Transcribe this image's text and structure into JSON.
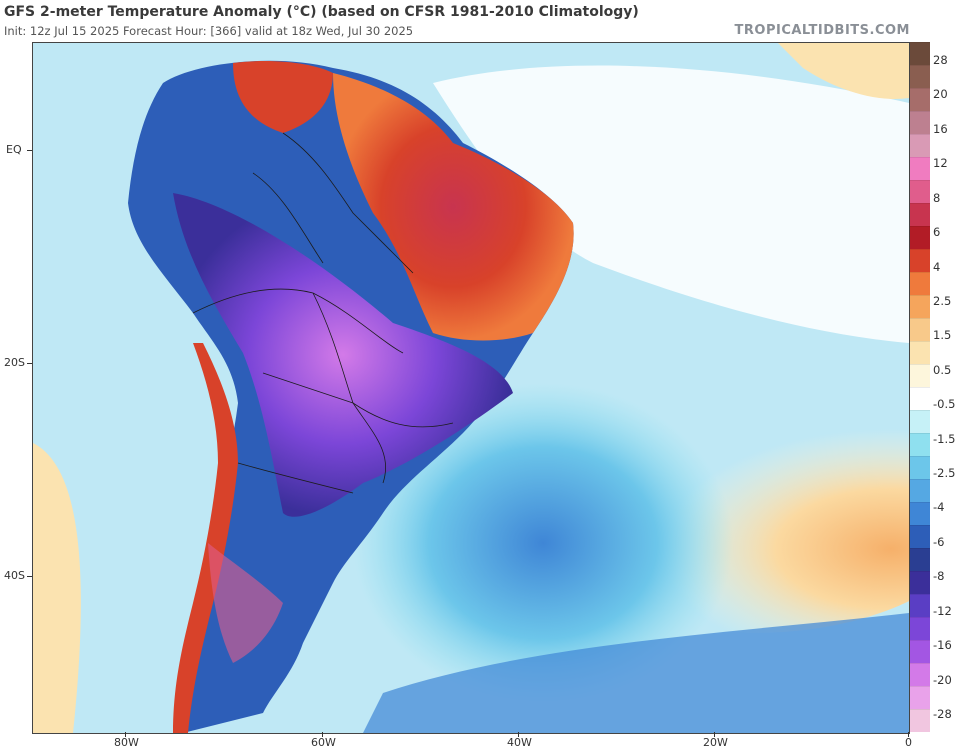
{
  "header": {
    "title": "GFS 2-meter Temperature Anomaly (°C) (based on CFSR 1981-2010 Climatology)",
    "subtitle": "Init: 12z Jul 15 2025   Forecast Hour: [366]   valid at 18z Wed, Jul 30 2025",
    "watermark": "TROPICALTIDBITS.COM"
  },
  "map": {
    "lat_labels": [
      "EQ",
      "20S",
      "40S"
    ],
    "lon_labels": [
      "80W",
      "60W",
      "40W",
      "20W",
      "0"
    ]
  },
  "colorbar": {
    "labels": [
      "28",
      "20",
      "16",
      "12",
      "8",
      "6",
      "4",
      "2.5",
      "1.5",
      "0.5",
      "-0.5",
      "-1.5",
      "-2.5",
      "-4",
      "-6",
      "-8",
      "-12",
      "-16",
      "-20",
      "-28"
    ],
    "colors": [
      "#6b4a3a",
      "#8a5e50",
      "#a66d6a",
      "#bd8090",
      "#d99ab5",
      "#f07cc0",
      "#e05d8c",
      "#c8344f",
      "#b21c26",
      "#d8422a",
      "#ef7a3c",
      "#f5a55c",
      "#f8c98a",
      "#fbe3b0",
      "#fdf6dc",
      "#ffffff",
      "#c6f1f7",
      "#8fe0ef",
      "#6cc6ea",
      "#55a8e3",
      "#3f86d6",
      "#2d5eb8",
      "#2a3e92",
      "#3b2f9a",
      "#5a3ec4",
      "#7c46d8",
      "#a356e3",
      "#d37ae8",
      "#e9a2ea",
      "#f1c6e0"
    ]
  }
}
